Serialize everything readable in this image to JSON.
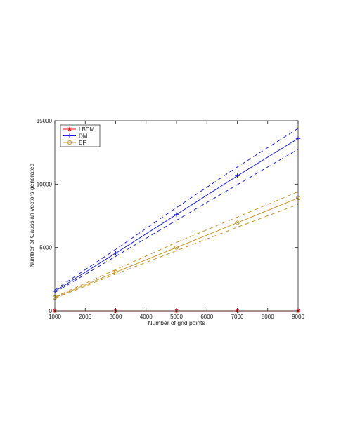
{
  "chart_data": {
    "type": "line",
    "title": "",
    "xlabel": "Number of grid points",
    "ylabel": "Number of Gaussian vectors generated",
    "xlim": [
      1000,
      9000
    ],
    "ylim": [
      0,
      15000
    ],
    "xticks": [
      1000,
      2000,
      3000,
      4000,
      5000,
      6000,
      7000,
      8000,
      9000
    ],
    "yticks": [
      0,
      5000,
      10000,
      15000
    ],
    "xtick_labels": [
      "1000",
      "2000",
      "3000",
      "4000",
      "5000",
      "6000",
      "7000",
      "8000",
      "9000"
    ],
    "ytick_labels": [
      "0",
      "5000",
      "10000",
      "15000"
    ],
    "grid": false,
    "legend_position": "top-left",
    "x": [
      1000,
      3000,
      5000,
      7000,
      9000
    ],
    "series": [
      {
        "name": "LBDM",
        "color": "#ee1111",
        "marker": "asterisk",
        "values": [
          0,
          0,
          0,
          0,
          0
        ],
        "band_upper": null,
        "band_lower": null
      },
      {
        "name": "DM",
        "color": "#1f1fe0",
        "marker": "plus",
        "values": [
          1550,
          4550,
          7600,
          10650,
          13600
        ],
        "band_upper": [
          1650,
          4850,
          8150,
          11350,
          14400
        ],
        "band_lower": [
          1450,
          4300,
          7150,
          9950,
          12750
        ]
      },
      {
        "name": "EF",
        "color": "#c4962b",
        "marker": "circle",
        "values": [
          1050,
          3050,
          5000,
          6950,
          8900
        ],
        "band_upper": [
          1100,
          3250,
          5400,
          7400,
          9400
        ],
        "band_lower": [
          1000,
          2900,
          4750,
          6600,
          8400
        ]
      }
    ]
  }
}
